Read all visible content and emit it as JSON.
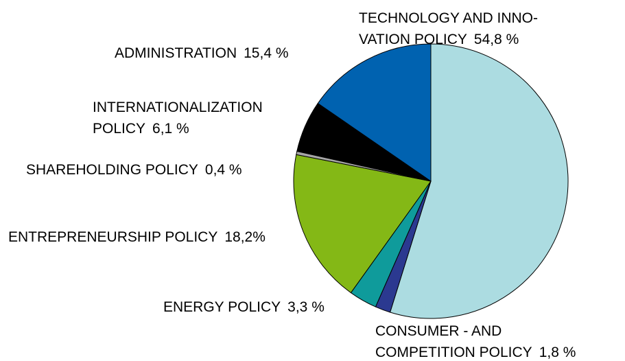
{
  "chart_data": {
    "type": "pie",
    "categories": [
      [
        "TECHNOLOGY AND INNO-",
        "VATION POLICY"
      ],
      [
        "CONSUMER - AND",
        "COMPETITION POLICY"
      ],
      [
        "ENERGY POLICY"
      ],
      [
        "ENTREPRENEURSHIP POLICY"
      ],
      [
        "SHAREHOLDING POLICY"
      ],
      [
        "INTERNATIONALIZATION",
        "POLICY"
      ],
      [
        "ADMINISTRATION"
      ]
    ],
    "values": [
      54.8,
      1.8,
      3.3,
      18.2,
      0.4,
      6.1,
      15.4
    ],
    "value_labels": [
      "54,8 %",
      "1,8 %",
      "3,3 %",
      "18,2%",
      "0,4 %",
      "6,1 %",
      "15,4 %"
    ],
    "colors": [
      "#acdce1",
      "#2b3990",
      "#0f9b9b",
      "#84b816",
      "#a6a6a6",
      "#000000",
      "#0062b0"
    ]
  }
}
